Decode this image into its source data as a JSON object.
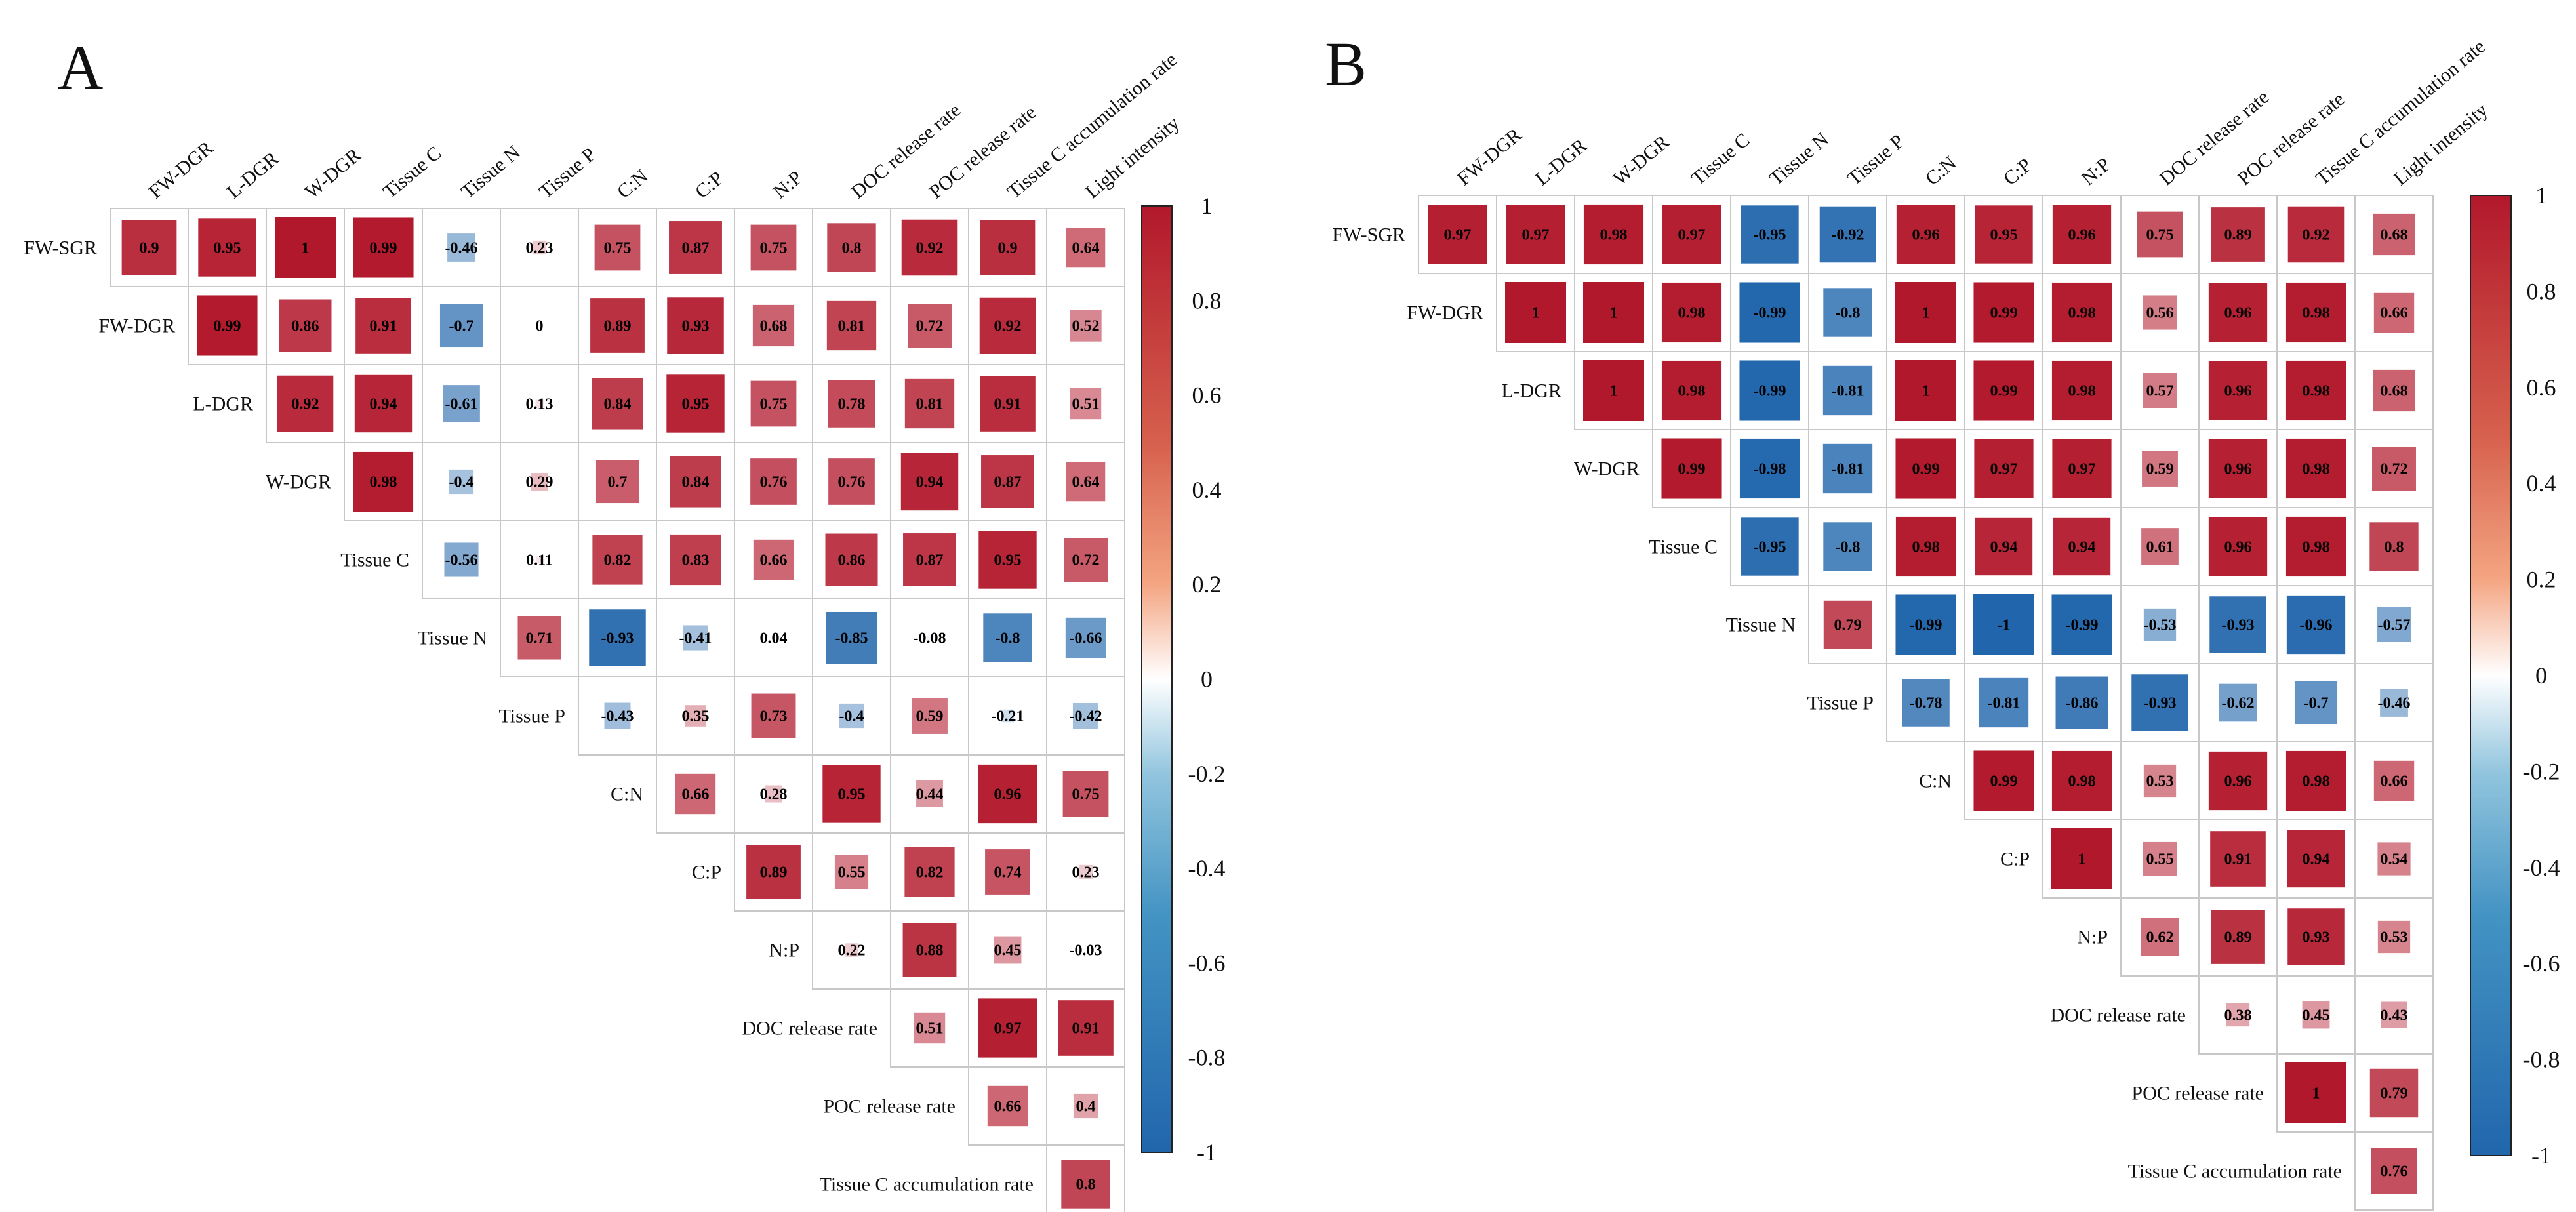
{
  "colors": {
    "positive": "#B2182B",
    "negative": "#2166AC",
    "neutral": "#FFFFFF",
    "grid": "#C8C8C8"
  },
  "chart_data": [
    {
      "panel": "A",
      "type": "heatmap",
      "title": "A",
      "row_labels": [
        "FW-SGR",
        "FW-DGR",
        "L-DGR",
        "W-DGR",
        "Tissue C",
        "Tissue N",
        "Tissue P",
        "C:N",
        "C:P",
        "N:P",
        "DOC release rate",
        "POC release rate",
        "Tissue C accumulation rate"
      ],
      "col_labels": [
        "FW-DGR",
        "L-DGR",
        "W-DGR",
        "Tissue C",
        "Tissue N",
        "Tissue P",
        "C:N",
        "C:P",
        "N:P",
        "DOC release rate",
        "POC release rate",
        "Tissue C accumulation rate",
        "Light intensity"
      ],
      "values": [
        [
          0.9,
          0.95,
          1,
          0.99,
          -0.46,
          0.23,
          0.75,
          0.87,
          0.75,
          0.8,
          0.92,
          0.9,
          0.64
        ],
        [
          0.99,
          0.86,
          0.91,
          -0.7,
          0,
          0.89,
          0.93,
          0.68,
          0.81,
          0.72,
          0.92,
          0.52
        ],
        [
          0.92,
          0.94,
          -0.61,
          0.13,
          0.84,
          0.95,
          0.75,
          0.78,
          0.81,
          0.91,
          0.51
        ],
        [
          0.98,
          -0.4,
          0.29,
          0.7,
          0.84,
          0.76,
          0.76,
          0.94,
          0.87,
          0.64
        ],
        [
          -0.56,
          0.11,
          0.82,
          0.83,
          0.66,
          0.86,
          0.87,
          0.95,
          0.72
        ],
        [
          0.71,
          -0.93,
          -0.41,
          0.04,
          -0.85,
          -0.08,
          -0.8,
          -0.66
        ],
        [
          -0.43,
          0.35,
          0.73,
          -0.4,
          0.59,
          -0.21,
          -0.42
        ],
        [
          0.66,
          0.28,
          0.95,
          0.44,
          0.96,
          0.75
        ],
        [
          0.89,
          0.55,
          0.82,
          0.74,
          0.23
        ],
        [
          0.22,
          0.88,
          0.45,
          -0.03
        ],
        [
          0.51,
          0.97,
          0.91
        ],
        [
          0.66,
          0.4
        ],
        [
          0.8
        ]
      ],
      "colorbar": {
        "min": -1,
        "max": 1,
        "ticks": [
          "1",
          "0.8",
          "0.6",
          "0.4",
          "0.2",
          "0",
          "-0.2",
          "-0.4",
          "-0.6",
          "-0.8",
          "-1"
        ]
      }
    },
    {
      "panel": "B",
      "type": "heatmap",
      "title": "B",
      "row_labels": [
        "FW-SGR",
        "FW-DGR",
        "L-DGR",
        "W-DGR",
        "Tissue C",
        "Tissue N",
        "Tissue P",
        "C:N",
        "C:P",
        "N:P",
        "DOC release rate",
        "POC release rate",
        "Tissue C accumulation rate"
      ],
      "col_labels": [
        "FW-DGR",
        "L-DGR",
        "W-DGR",
        "Tissue C",
        "Tissue N",
        "Tissue P",
        "C:N",
        "C:P",
        "N:P",
        "DOC release rate",
        "POC release rate",
        "Tissue C accumulation rate",
        "Light intensity"
      ],
      "values": [
        [
          0.97,
          0.97,
          0.98,
          0.97,
          -0.95,
          -0.92,
          0.96,
          0.95,
          0.96,
          0.75,
          0.89,
          0.92,
          0.68
        ],
        [
          1,
          1,
          0.98,
          -0.99,
          -0.8,
          1,
          0.99,
          0.98,
          0.56,
          0.96,
          0.98,
          0.66
        ],
        [
          1,
          0.98,
          -0.99,
          -0.81,
          1,
          0.99,
          0.98,
          0.57,
          0.96,
          0.98,
          0.68
        ],
        [
          0.99,
          -0.98,
          -0.81,
          0.99,
          0.97,
          0.97,
          0.59,
          0.96,
          0.98,
          0.72
        ],
        [
          -0.95,
          -0.8,
          0.98,
          0.94,
          0.94,
          0.61,
          0.96,
          0.98,
          0.8
        ],
        [
          0.79,
          -0.99,
          -1,
          -0.99,
          -0.53,
          -0.93,
          -0.96,
          -0.57
        ],
        [
          -0.78,
          -0.81,
          -0.86,
          -0.93,
          -0.62,
          -0.7,
          -0.46
        ],
        [
          0.99,
          0.98,
          0.53,
          0.96,
          0.98,
          0.66
        ],
        [
          1,
          0.55,
          0.91,
          0.94,
          0.54
        ],
        [
          0.62,
          0.89,
          0.93,
          0.53
        ],
        [
          0.38,
          0.45,
          0.43
        ],
        [
          1,
          0.79
        ],
        [
          0.76
        ]
      ],
      "colorbar": {
        "min": -1,
        "max": 1,
        "ticks": [
          "1",
          "0.8",
          "0.6",
          "0.4",
          "0.2",
          "0",
          "-0.2",
          "-0.4",
          "-0.6",
          "-0.8",
          "-1"
        ]
      }
    }
  ]
}
